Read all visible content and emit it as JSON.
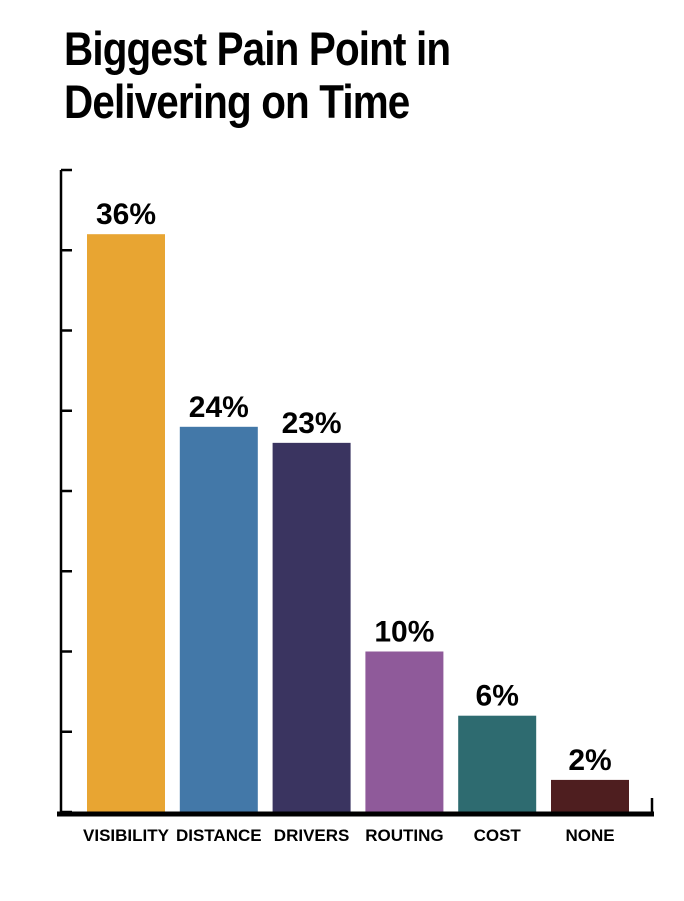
{
  "chart_data": {
    "type": "bar",
    "title_lines": [
      "Biggest Pain Point in",
      "Delivering on Time"
    ],
    "categories": [
      "VISIBILITY",
      "DISTANCE",
      "DRIVERS",
      "ROUTING",
      "COST",
      "NONE"
    ],
    "values": [
      36,
      24,
      23,
      10,
      6,
      2
    ],
    "value_labels": [
      "36%",
      "24%",
      "23%",
      "10%",
      "6%",
      "2%"
    ],
    "colors": [
      "#E8A532",
      "#4378A8",
      "#3A3460",
      "#8F5A9A",
      "#2E6B70",
      "#4E1E1F"
    ],
    "ylim": [
      0,
      40
    ],
    "yaxis_tick_labels": false,
    "legend": "none",
    "grid": false
  }
}
